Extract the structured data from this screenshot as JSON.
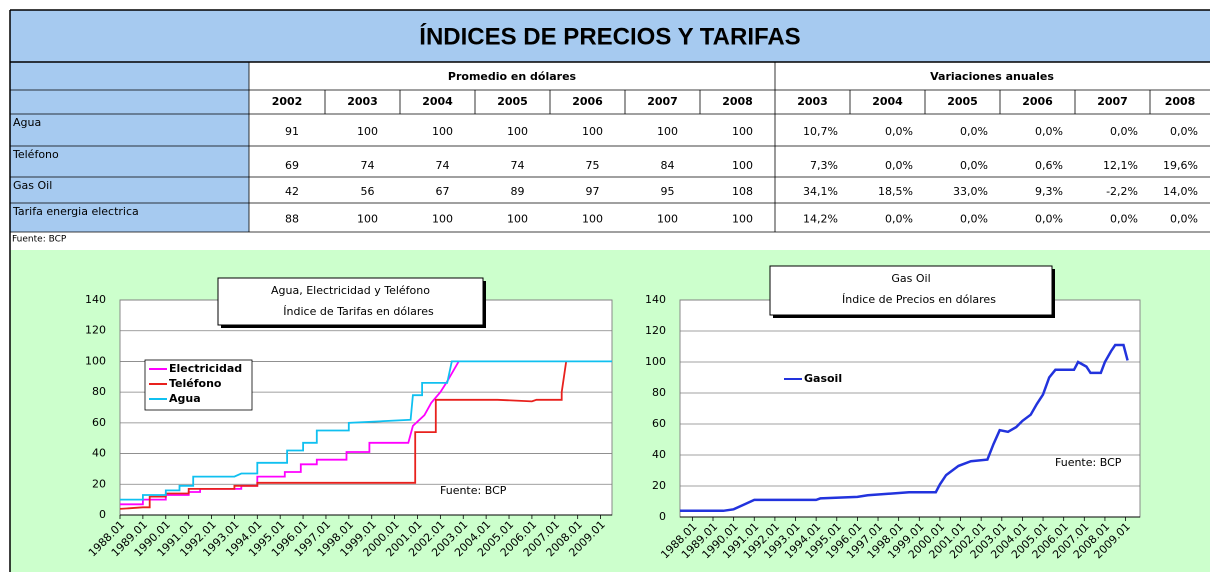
{
  "header": {
    "title": "ÍNDICES DE PRECIOS Y TARIFAS"
  },
  "table": {
    "groups": [
      "Promedio en dólares",
      "Variaciones anuales"
    ],
    "columns": [
      "2002",
      "2003",
      "2004",
      "2005",
      "2006",
      "2007",
      "2008",
      "2003",
      "2004",
      "2005",
      "2006",
      "2007",
      "2008"
    ],
    "rows": [
      {
        "label": "Agua",
        "cells": [
          "91",
          "100",
          "100",
          "100",
          "100",
          "100",
          "100",
          "10,7%",
          "0,0%",
          "0,0%",
          "0,0%",
          "0,0%",
          "0,0%"
        ]
      },
      {
        "label": "Teléfono",
        "cells": [
          "69",
          "74",
          "74",
          "74",
          "75",
          "84",
          "100",
          "7,3%",
          "0,0%",
          "0,0%",
          "0,6%",
          "12,1%",
          "19,6%"
        ]
      },
      {
        "label": "Gas Oil",
        "cells": [
          "42",
          "56",
          "67",
          "89",
          "97",
          "95",
          "108",
          "34,1%",
          "18,5%",
          "33,0%",
          "9,3%",
          "-2,2%",
          "14,0%"
        ]
      },
      {
        "label": "Tarifa energia electrica",
        "cells": [
          "88",
          "100",
          "100",
          "100",
          "100",
          "100",
          "100",
          "14,2%",
          "0,0%",
          "0,0%",
          "0,0%",
          "0,0%",
          "0,0%"
        ]
      }
    ]
  },
  "source": "Fuente: BCP",
  "chart_data": [
    {
      "type": "line",
      "title": [
        "Agua, Electricidad y Teléfono",
        "Índice de Tarifas en dólares"
      ],
      "annotation": "Fuente: BCP",
      "grid": true,
      "legend": "upper left",
      "xlim": [
        1988,
        2009.5
      ],
      "ylim": [
        0,
        140
      ],
      "yticks": [
        0,
        20,
        40,
        60,
        80,
        100,
        120,
        140
      ],
      "xticks": [
        {
          "value": 1988,
          "label": "1988.01"
        },
        {
          "value": 1989,
          "label": "1989.01"
        },
        {
          "value": 1990,
          "label": "1990.01"
        },
        {
          "value": 1991,
          "label": "1991.01"
        },
        {
          "value": 1992,
          "label": "1992.01"
        },
        {
          "value": 1993,
          "label": "1993.01"
        },
        {
          "value": 1994,
          "label": "1994.01"
        },
        {
          "value": 1995,
          "label": "1995.01"
        },
        {
          "value": 1996,
          "label": "1996.01"
        },
        {
          "value": 1997,
          "label": "1997.01"
        },
        {
          "value": 1998,
          "label": "1998.01"
        },
        {
          "value": 1999,
          "label": "1999.01"
        },
        {
          "value": 2000,
          "label": "2000.01"
        },
        {
          "value": 2001,
          "label": "2001.01"
        },
        {
          "value": 2002,
          "label": "2002.01"
        },
        {
          "value": 2003,
          "label": "2003.01"
        },
        {
          "value": 2004,
          "label": "2004.01"
        },
        {
          "value": 2005,
          "label": "2005.01"
        },
        {
          "value": 2006,
          "label": "2006.01"
        },
        {
          "value": 2007,
          "label": "2007.01"
        },
        {
          "value": 2008,
          "label": "2008.01"
        },
        {
          "value": 2009,
          "label": "2009.01"
        }
      ],
      "series": [
        {
          "name": "Electricidad",
          "color": "#ff00ff",
          "x": [
            1988,
            1989,
            1989,
            1990,
            1990,
            1991,
            1991,
            1991.5,
            1991.5,
            1993.3,
            1993.3,
            1994,
            1994,
            1995.2,
            1995.2,
            1995.9,
            1995.9,
            1996.6,
            1996.6,
            1997.9,
            1997.9,
            1998.9,
            1998.9,
            2000.6,
            2000.8,
            2001.3,
            2001.6,
            2002,
            2002.3,
            2002.8
          ],
          "values": [
            7,
            7,
            10,
            10,
            13,
            13,
            15,
            15,
            17,
            17,
            19,
            19,
            25,
            25,
            28,
            28,
            33,
            33,
            36,
            36,
            41,
            41,
            47,
            47,
            58,
            65,
            73,
            80,
            87,
            100
          ]
        },
        {
          "name": "Teléfono",
          "color": "#e8211d",
          "x": [
            1988,
            1989,
            1989.3,
            1989.3,
            1990,
            1990,
            1991,
            1991,
            1993,
            1993,
            1994,
            1994,
            2000.9,
            2000.9,
            2001.8,
            2001.8,
            2004.5,
            2006,
            2006.2,
            2007.3,
            2007.3,
            2007.5
          ],
          "values": [
            4,
            5,
            5,
            12,
            12,
            14,
            14,
            17,
            17,
            19,
            19,
            21,
            21,
            54,
            54,
            75,
            75,
            74,
            75,
            75,
            80,
            100
          ]
        },
        {
          "name": "Agua",
          "color": "#10c0f0",
          "x": [
            1988,
            1989,
            1989,
            1990,
            1990,
            1990.6,
            1990.6,
            1991.2,
            1991.2,
            1993,
            1993.3,
            1994,
            1994,
            1995.3,
            1995.3,
            1996,
            1996,
            1996.6,
            1996.6,
            1998,
            1998,
            2000.7,
            2000.8,
            2001.2,
            2001.2,
            2002.3,
            2002.5,
            2009.5
          ],
          "values": [
            10,
            10,
            13,
            13,
            16,
            16,
            19,
            19,
            25,
            25,
            27,
            27,
            34,
            34,
            42,
            42,
            47,
            47,
            55,
            55,
            60,
            62,
            78,
            78,
            86,
            86,
            100,
            100
          ]
        }
      ]
    },
    {
      "type": "line",
      "title": [
        "Gas Oil",
        "Índice de Precios en dólares"
      ],
      "annotation": "Fuente: BCP",
      "grid": true,
      "legend": "upper left",
      "xlim": [
        1987.4,
        2009.7
      ],
      "ylim": [
        0,
        140
      ],
      "yticks": [
        0,
        20,
        40,
        60,
        80,
        100,
        120,
        140
      ],
      "xticks": [
        {
          "value": 1988,
          "label": "1988.01"
        },
        {
          "value": 1989,
          "label": "1989.01"
        },
        {
          "value": 1990,
          "label": "1990.01"
        },
        {
          "value": 1991,
          "label": "1991.01"
        },
        {
          "value": 1992,
          "label": "1992.01"
        },
        {
          "value": 1993,
          "label": "1993.01"
        },
        {
          "value": 1994,
          "label": "1994.01"
        },
        {
          "value": 1995,
          "label": "1995.01"
        },
        {
          "value": 1996,
          "label": "1996.01"
        },
        {
          "value": 1997,
          "label": "1997.01"
        },
        {
          "value": 1998,
          "label": "1998.01"
        },
        {
          "value": 1999,
          "label": "1999.01"
        },
        {
          "value": 2000,
          "label": "2000.01"
        },
        {
          "value": 2001,
          "label": "2001.01"
        },
        {
          "value": 2002,
          "label": "2002.01"
        },
        {
          "value": 2003,
          "label": "2003.01"
        },
        {
          "value": 2004,
          "label": "2004.01"
        },
        {
          "value": 2005,
          "label": "2005.01"
        },
        {
          "value": 2006,
          "label": "2006.01"
        },
        {
          "value": 2007,
          "label": "2007.01"
        },
        {
          "value": 2008,
          "label": "2008.01"
        },
        {
          "value": 2009,
          "label": "2009.01"
        }
      ],
      "series": [
        {
          "name": "Gasoil",
          "color": "#2233dd",
          "x": [
            1987.4,
            1989.5,
            1990,
            1990.5,
            1991,
            1994,
            1994.2,
            1996,
            1996.5,
            1997.5,
            1998.5,
            1999.8,
            2000,
            2000.3,
            2000.9,
            2001.5,
            2002.3,
            2002.6,
            2002.9,
            2003.3,
            2003.7,
            2004,
            2004.4,
            2004.7,
            2005,
            2005.3,
            2005.6,
            2006.5,
            2006.7,
            2007.1,
            2007.3,
            2007.8,
            2008,
            2008.3,
            2008.5,
            2008.9,
            2009.1
          ],
          "values": [
            4,
            4,
            5,
            8,
            11,
            11,
            12,
            13,
            14,
            15,
            16,
            16,
            21,
            27,
            33,
            36,
            37,
            47,
            56,
            55,
            58,
            62,
            66,
            73,
            79,
            90,
            95,
            95,
            100,
            97,
            93,
            93,
            100,
            107,
            111,
            111,
            101
          ]
        }
      ]
    }
  ]
}
